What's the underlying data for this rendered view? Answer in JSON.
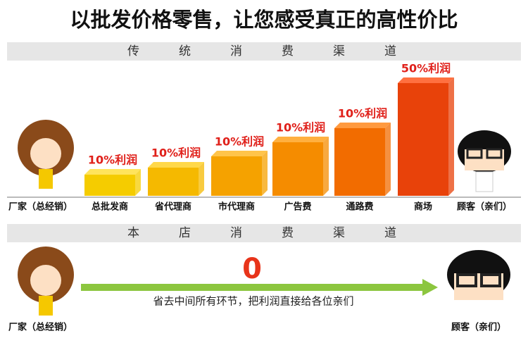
{
  "title": "以批发价格零售，让您感受真正的高性价比",
  "traditional": {
    "header": "传统消费渠道",
    "start": "厂家（总经销）",
    "stages": [
      {
        "label": "总批发商",
        "profit": "10%利润"
      },
      {
        "label": "省代理商",
        "profit": "10%利润"
      },
      {
        "label": "市代理商",
        "profit": "10%利润"
      },
      {
        "label": "广告费",
        "profit": "10%利润"
      },
      {
        "label": "通路费",
        "profit": "10%利润"
      },
      {
        "label": "商场",
        "profit": "50%利润"
      }
    ],
    "end": "顾客（亲们）"
  },
  "store": {
    "header": "本店消费渠道",
    "start": "厂家（总经销）",
    "profit": "0",
    "note": "省去中间所有环节，把利润直接给各位亲们",
    "end": "顾客（亲们）"
  }
}
